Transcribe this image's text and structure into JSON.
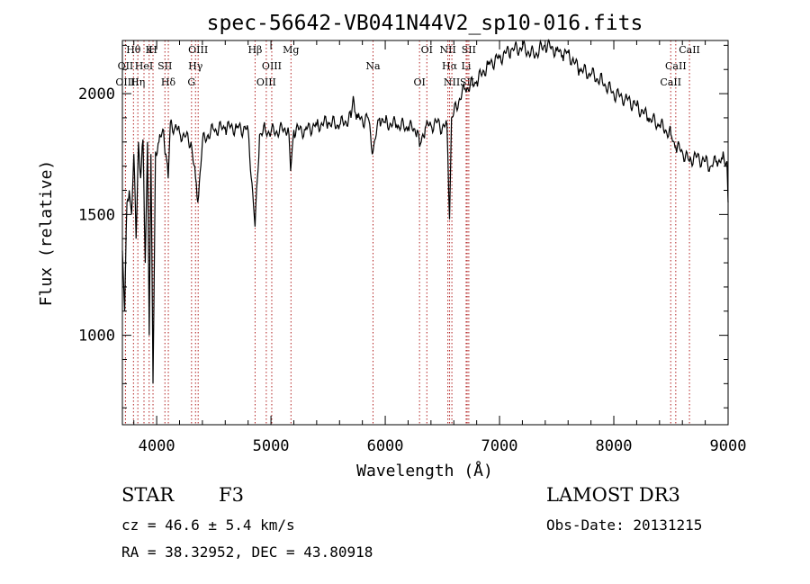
{
  "chart_data": {
    "type": "line",
    "title": "spec-56642-VB041N44V2_sp10-016.fits",
    "xlabel": "Wavelength (Å)",
    "ylabel": "Flux (relative)",
    "xlim": [
      3700,
      9000
    ],
    "ylim": [
      630,
      2220
    ],
    "xticks": [
      4000,
      5000,
      6000,
      7000,
      8000,
      9000
    ],
    "yticks": [
      1000,
      1500,
      2000
    ],
    "series": [
      {
        "name": "spectrum",
        "x": [
          3700,
          3720,
          3740,
          3760,
          3780,
          3800,
          3820,
          3840,
          3860,
          3880,
          3900,
          3920,
          3935,
          3950,
          3968,
          3990,
          4020,
          4060,
          4080,
          4101,
          4120,
          4160,
          4200,
          4250,
          4300,
          4340,
          4360,
          4400,
          4450,
          4500,
          4600,
          4700,
          4800,
          4861,
          4900,
          4950,
          5000,
          5100,
          5150,
          5172,
          5200,
          5300,
          5400,
          5500,
          5600,
          5700,
          5720,
          5740,
          5760,
          5800,
          5850,
          5893,
          5950,
          6000,
          6100,
          6200,
          6280,
          6300,
          6350,
          6400,
          6450,
          6500,
          6540,
          6563,
          6580,
          6600,
          6650,
          6700,
          6800,
          6900,
          7000,
          7100,
          7200,
          7300,
          7400,
          7500,
          7550,
          7600,
          7650,
          7700,
          7800,
          7900,
          8000,
          8100,
          8200,
          8300,
          8400,
          8450,
          8500,
          8542,
          8600,
          8662,
          8700,
          8800,
          8850,
          8900,
          8950,
          8990,
          9000
        ],
        "y": [
          1350,
          1100,
          1550,
          1600,
          1500,
          1750,
          1400,
          1800,
          1650,
          1810,
          1300,
          1800,
          1000,
          1750,
          800,
          1760,
          1800,
          1850,
          1750,
          1650,
          1880,
          1860,
          1840,
          1820,
          1800,
          1650,
          1550,
          1800,
          1830,
          1850,
          1860,
          1860,
          1850,
          1450,
          1830,
          1850,
          1840,
          1850,
          1860,
          1680,
          1850,
          1850,
          1870,
          1880,
          1870,
          1900,
          1990,
          1920,
          1900,
          1890,
          1900,
          1760,
          1900,
          1880,
          1870,
          1860,
          1850,
          1780,
          1860,
          1870,
          1880,
          1860,
          1870,
          1480,
          1900,
          1920,
          1980,
          2020,
          2050,
          2120,
          2150,
          2180,
          2190,
          2160,
          2200,
          2180,
          2160,
          2170,
          2130,
          2100,
          2080,
          2050,
          2000,
          1980,
          1950,
          1900,
          1870,
          1850,
          1830,
          1780,
          1760,
          1720,
          1740,
          1720,
          1700,
          1720,
          1730,
          1720,
          1550
        ]
      }
    ],
    "lines": [
      {
        "label": "Hθ",
        "wave": 3797
      },
      {
        "label": "OII",
        "wave": 3727
      },
      {
        "label": "OIII",
        "wave": 3727
      },
      {
        "label": "K",
        "wave": 3934
      },
      {
        "label": "HeI",
        "wave": 3889
      },
      {
        "label": "Hη",
        "wave": 3835
      },
      {
        "label": "H",
        "wave": 3968
      },
      {
        "label": "SII",
        "wave": 4072
      },
      {
        "label": "Hδ",
        "wave": 4102
      },
      {
        "label": "OIII",
        "wave": 4363
      },
      {
        "label": "Hγ",
        "wave": 4340
      },
      {
        "label": "G",
        "wave": 4305
      },
      {
        "label": "Hβ",
        "wave": 4861
      },
      {
        "label": "OIII",
        "wave": 5007
      },
      {
        "label": "OIII",
        "wave": 4959
      },
      {
        "label": "Mg",
        "wave": 5175
      },
      {
        "label": "Na",
        "wave": 5893
      },
      {
        "label": "OI",
        "wave": 6300
      },
      {
        "label": "OI",
        "wave": 6364
      },
      {
        "label": "Hα",
        "wave": 6563
      },
      {
        "label": "SII",
        "wave": 6717
      },
      {
        "label": "NII",
        "wave": 6548
      },
      {
        "label": "Li",
        "wave": 6708
      },
      {
        "label": "NII",
        "wave": 6583
      },
      {
        "label": "SII",
        "wave": 6731
      },
      {
        "label": "CaII",
        "wave": 8542
      },
      {
        "label": "CaII",
        "wave": 8498
      },
      {
        "label": "CaII",
        "wave": 8662
      }
    ]
  },
  "info": {
    "class": "STAR",
    "subclass": "F3",
    "survey": "LAMOST DR3",
    "cz": "cz = 46.6 ± 5.4 km/s",
    "obs_date": "Obs-Date: 20131215",
    "coords": "RA =  38.32952, DEC =  43.80918"
  }
}
